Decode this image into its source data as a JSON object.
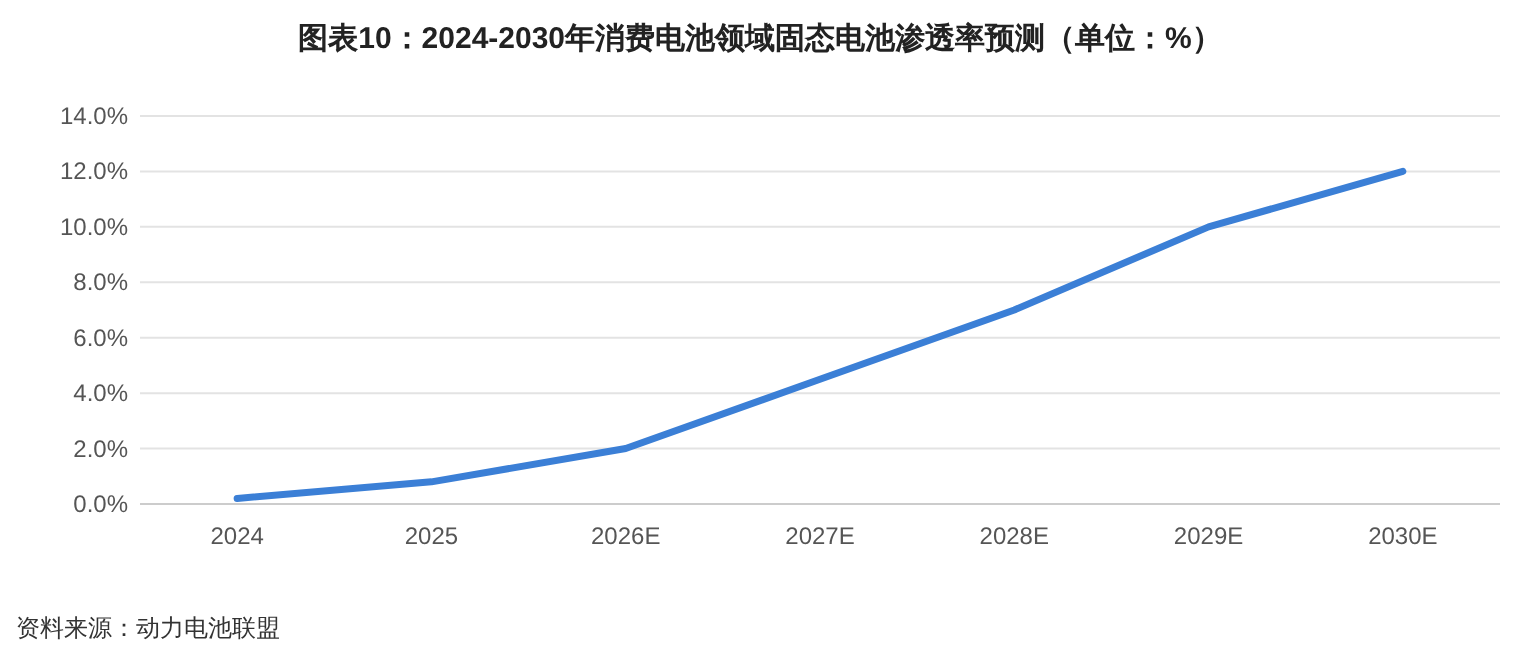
{
  "chart_data": {
    "type": "line",
    "title": "图表10：2024-2030年消费电池领域固态电池渗透率预测（单位：%）",
    "categories": [
      "2024",
      "2025",
      "2026E",
      "2027E",
      "2028E",
      "2029E",
      "2030E"
    ],
    "series": [
      {
        "color": "#3b7fd6",
        "values": [
          0.2,
          0.8,
          2.0,
          4.5,
          7.0,
          10.0,
          12.0
        ]
      }
    ],
    "ylim": [
      0,
      14
    ],
    "yticks": [
      {
        "value": 0,
        "label": "0.0%"
      },
      {
        "value": 2,
        "label": "2.0%"
      },
      {
        "value": 4,
        "label": "4.0%"
      },
      {
        "value": 6,
        "label": "6.0%"
      },
      {
        "value": 8,
        "label": "8.0%"
      },
      {
        "value": 10,
        "label": "10.0%"
      },
      {
        "value": 12,
        "label": "12.0%"
      },
      {
        "value": 14,
        "label": "14.0%"
      }
    ],
    "grid": "y",
    "annotations": [
      "资料来源：动力电池联盟"
    ]
  }
}
